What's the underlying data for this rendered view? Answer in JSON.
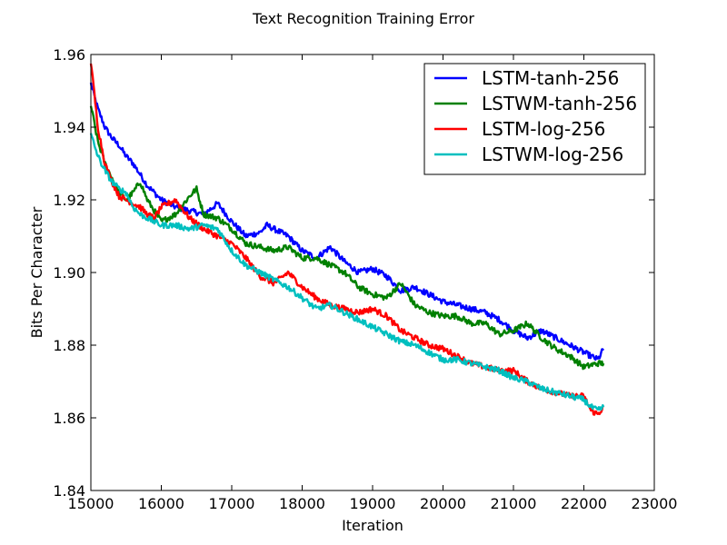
{
  "chart_data": {
    "type": "line",
    "title": "Text Recognition Training Error",
    "xlabel": "Iteration",
    "ylabel": "Bits Per Character",
    "xlim": [
      15000,
      23000
    ],
    "ylim": [
      1.84,
      1.96
    ],
    "xticks": [
      15000,
      16000,
      17000,
      18000,
      19000,
      20000,
      21000,
      22000,
      23000
    ],
    "xtick_labels": [
      "15000",
      "16000",
      "17000",
      "18000",
      "19000",
      "20000",
      "21000",
      "22000",
      "23000"
    ],
    "yticks": [
      1.84,
      1.86,
      1.88,
      1.9,
      1.92,
      1.94,
      1.96
    ],
    "ytick_labels": [
      "1.84",
      "1.86",
      "1.88",
      "1.90",
      "1.92",
      "1.94",
      "1.96"
    ],
    "grid": false,
    "legend_position": "top-right",
    "series": [
      {
        "name": "LSTM-tanh-256",
        "color": "#0000ff",
        "x": [
          15000,
          15100,
          15200,
          15300,
          15400,
          15500,
          15600,
          15700,
          15800,
          15900,
          16000,
          16200,
          16400,
          16600,
          16800,
          17000,
          17200,
          17400,
          17500,
          17600,
          17800,
          18000,
          18200,
          18400,
          18600,
          18800,
          19000,
          19200,
          19400,
          19600,
          19800,
          20000,
          20200,
          20400,
          20600,
          20800,
          21000,
          21200,
          21400,
          21600,
          21800,
          22000,
          22200,
          22280
        ],
        "y": [
          1.952,
          1.945,
          1.94,
          1.937,
          1.935,
          1.932,
          1.93,
          1.927,
          1.924,
          1.922,
          1.92,
          1.918,
          1.917,
          1.916,
          1.919,
          1.914,
          1.91,
          1.911,
          1.913,
          1.912,
          1.91,
          1.906,
          1.904,
          1.907,
          1.903,
          1.9,
          1.901,
          1.899,
          1.895,
          1.896,
          1.894,
          1.892,
          1.891,
          1.89,
          1.889,
          1.887,
          1.884,
          1.882,
          1.884,
          1.882,
          1.88,
          1.878,
          1.876,
          1.879
        ]
      },
      {
        "name": "LSTWM-tanh-256",
        "color": "#008000",
        "x": [
          15000,
          15100,
          15200,
          15300,
          15400,
          15500,
          15600,
          15700,
          15800,
          15900,
          16000,
          16200,
          16400,
          16500,
          16600,
          16800,
          17000,
          17200,
          17400,
          17600,
          17800,
          18000,
          18200,
          18400,
          18600,
          18800,
          19000,
          19200,
          19400,
          19600,
          19800,
          20000,
          20200,
          20400,
          20600,
          20800,
          21000,
          21200,
          21400,
          21600,
          21800,
          22000,
          22200,
          22280
        ],
        "y": [
          1.946,
          1.936,
          1.93,
          1.926,
          1.922,
          1.92,
          1.922,
          1.925,
          1.92,
          1.917,
          1.914,
          1.916,
          1.921,
          1.923,
          1.916,
          1.915,
          1.912,
          1.908,
          1.907,
          1.906,
          1.907,
          1.904,
          1.904,
          1.902,
          1.9,
          1.896,
          1.894,
          1.893,
          1.897,
          1.891,
          1.889,
          1.888,
          1.888,
          1.886,
          1.886,
          1.883,
          1.884,
          1.886,
          1.882,
          1.879,
          1.877,
          1.874,
          1.875,
          1.875
        ]
      },
      {
        "name": "LSTM-log-256",
        "color": "#ff0000",
        "x": [
          15000,
          15100,
          15200,
          15300,
          15400,
          15500,
          15600,
          15700,
          15800,
          15900,
          16000,
          16200,
          16400,
          16600,
          16800,
          17000,
          17200,
          17400,
          17600,
          17800,
          18000,
          18200,
          18400,
          18600,
          18800,
          19000,
          19200,
          19400,
          19600,
          19800,
          20000,
          20200,
          20400,
          20600,
          20800,
          21000,
          21200,
          21400,
          21600,
          21800,
          22000,
          22100,
          22200,
          22280
        ],
        "y": [
          1.958,
          1.94,
          1.93,
          1.925,
          1.921,
          1.92,
          1.919,
          1.918,
          1.916,
          1.915,
          1.918,
          1.92,
          1.915,
          1.912,
          1.91,
          1.908,
          1.904,
          1.899,
          1.897,
          1.9,
          1.896,
          1.893,
          1.891,
          1.89,
          1.889,
          1.89,
          1.888,
          1.884,
          1.882,
          1.88,
          1.879,
          1.877,
          1.875,
          1.874,
          1.873,
          1.873,
          1.87,
          1.868,
          1.867,
          1.866,
          1.866,
          1.862,
          1.861,
          1.863
        ]
      },
      {
        "name": "LSTWM-log-256",
        "color": "#00bfbf",
        "x": [
          15000,
          15100,
          15200,
          15300,
          15400,
          15500,
          15600,
          15700,
          15800,
          15900,
          16000,
          16200,
          16400,
          16600,
          16800,
          17000,
          17200,
          17400,
          17600,
          17800,
          18000,
          18200,
          18400,
          18600,
          18800,
          19000,
          19200,
          19400,
          19600,
          19800,
          20000,
          20200,
          20400,
          20600,
          20800,
          21000,
          21200,
          21400,
          21600,
          21800,
          22000,
          22100,
          22200,
          22280
        ],
        "y": [
          1.938,
          1.932,
          1.928,
          1.925,
          1.923,
          1.922,
          1.918,
          1.916,
          1.915,
          1.914,
          1.913,
          1.913,
          1.912,
          1.913,
          1.912,
          1.906,
          1.902,
          1.9,
          1.898,
          1.896,
          1.893,
          1.89,
          1.891,
          1.889,
          1.887,
          1.885,
          1.883,
          1.881,
          1.88,
          1.878,
          1.876,
          1.876,
          1.875,
          1.874,
          1.873,
          1.871,
          1.87,
          1.868,
          1.867,
          1.866,
          1.865,
          1.863,
          1.862,
          1.863
        ]
      }
    ]
  }
}
